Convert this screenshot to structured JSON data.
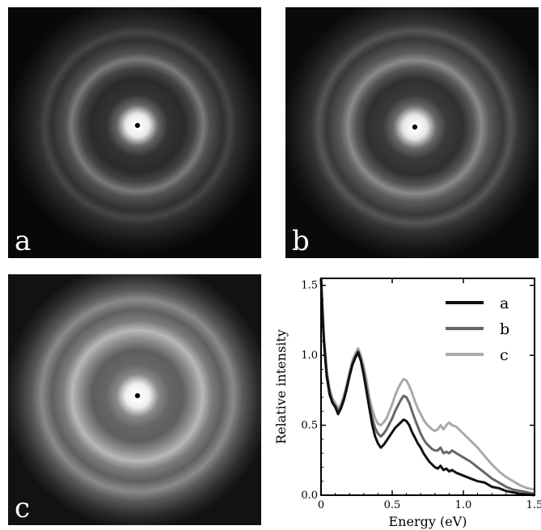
{
  "panels": [
    {
      "id": "a",
      "label": "a"
    },
    {
      "id": "b",
      "label": "b"
    },
    {
      "id": "c",
      "label": "c"
    }
  ],
  "chart_data": {
    "type": "line",
    "title": "",
    "xlabel": "Energy (eV)",
    "ylabel": "Relative intensity",
    "xlim": [
      0,
      1.5
    ],
    "ylim": [
      0,
      1.55
    ],
    "xticks": [
      "0",
      "0.5",
      "1.0",
      "1.5"
    ],
    "yticks": [
      "0.0",
      "0.5",
      "1.0",
      "1.5"
    ],
    "grid": false,
    "legend_position": "top-right",
    "series": [
      {
        "name": "a",
        "color": "#111111",
        "points": [
          [
            0.0,
            1.55
          ],
          [
            0.01,
            1.3
          ],
          [
            0.02,
            1.1
          ],
          [
            0.04,
            0.85
          ],
          [
            0.06,
            0.72
          ],
          [
            0.08,
            0.66
          ],
          [
            0.1,
            0.63
          ],
          [
            0.12,
            0.58
          ],
          [
            0.14,
            0.62
          ],
          [
            0.16,
            0.68
          ],
          [
            0.18,
            0.76
          ],
          [
            0.2,
            0.85
          ],
          [
            0.22,
            0.93
          ],
          [
            0.24,
            0.98
          ],
          [
            0.26,
            1.02
          ],
          [
            0.28,
            0.96
          ],
          [
            0.3,
            0.86
          ],
          [
            0.32,
            0.74
          ],
          [
            0.34,
            0.62
          ],
          [
            0.36,
            0.5
          ],
          [
            0.38,
            0.42
          ],
          [
            0.4,
            0.37
          ],
          [
            0.42,
            0.34
          ],
          [
            0.44,
            0.36
          ],
          [
            0.46,
            0.39
          ],
          [
            0.48,
            0.42
          ],
          [
            0.5,
            0.45
          ],
          [
            0.52,
            0.48
          ],
          [
            0.54,
            0.5
          ],
          [
            0.56,
            0.52
          ],
          [
            0.58,
            0.54
          ],
          [
            0.6,
            0.53
          ],
          [
            0.62,
            0.5
          ],
          [
            0.64,
            0.45
          ],
          [
            0.66,
            0.41
          ],
          [
            0.68,
            0.37
          ],
          [
            0.7,
            0.34
          ],
          [
            0.72,
            0.3
          ],
          [
            0.74,
            0.27
          ],
          [
            0.76,
            0.24
          ],
          [
            0.78,
            0.22
          ],
          [
            0.8,
            0.2
          ],
          [
            0.82,
            0.19
          ],
          [
            0.84,
            0.21
          ],
          [
            0.86,
            0.18
          ],
          [
            0.88,
            0.19
          ],
          [
            0.9,
            0.17
          ],
          [
            0.92,
            0.18
          ],
          [
            0.95,
            0.16
          ],
          [
            1.0,
            0.14
          ],
          [
            1.05,
            0.12
          ],
          [
            1.1,
            0.1
          ],
          [
            1.15,
            0.09
          ],
          [
            1.2,
            0.06
          ],
          [
            1.25,
            0.05
          ],
          [
            1.3,
            0.03
          ],
          [
            1.35,
            0.02
          ],
          [
            1.4,
            0.01
          ],
          [
            1.45,
            0.005
          ],
          [
            1.5,
            0.0
          ]
        ]
      },
      {
        "name": "b",
        "color": "#666666",
        "points": [
          [
            0.0,
            1.55
          ],
          [
            0.01,
            1.32
          ],
          [
            0.02,
            1.12
          ],
          [
            0.04,
            0.87
          ],
          [
            0.06,
            0.74
          ],
          [
            0.08,
            0.67
          ],
          [
            0.1,
            0.64
          ],
          [
            0.12,
            0.6
          ],
          [
            0.14,
            0.63
          ],
          [
            0.16,
            0.69
          ],
          [
            0.18,
            0.77
          ],
          [
            0.2,
            0.86
          ],
          [
            0.22,
            0.94
          ],
          [
            0.24,
            0.99
          ],
          [
            0.26,
            1.03
          ],
          [
            0.28,
            0.97
          ],
          [
            0.3,
            0.88
          ],
          [
            0.32,
            0.77
          ],
          [
            0.34,
            0.65
          ],
          [
            0.36,
            0.55
          ],
          [
            0.38,
            0.48
          ],
          [
            0.4,
            0.44
          ],
          [
            0.42,
            0.42
          ],
          [
            0.44,
            0.44
          ],
          [
            0.46,
            0.47
          ],
          [
            0.48,
            0.51
          ],
          [
            0.5,
            0.55
          ],
          [
            0.52,
            0.6
          ],
          [
            0.54,
            0.64
          ],
          [
            0.56,
            0.68
          ],
          [
            0.58,
            0.71
          ],
          [
            0.6,
            0.7
          ],
          [
            0.62,
            0.66
          ],
          [
            0.64,
            0.6
          ],
          [
            0.66,
            0.54
          ],
          [
            0.68,
            0.49
          ],
          [
            0.7,
            0.44
          ],
          [
            0.72,
            0.4
          ],
          [
            0.74,
            0.37
          ],
          [
            0.76,
            0.35
          ],
          [
            0.78,
            0.33
          ],
          [
            0.8,
            0.32
          ],
          [
            0.82,
            0.32
          ],
          [
            0.84,
            0.34
          ],
          [
            0.86,
            0.3
          ],
          [
            0.88,
            0.31
          ],
          [
            0.9,
            0.3
          ],
          [
            0.92,
            0.32
          ],
          [
            0.95,
            0.3
          ],
          [
            1.0,
            0.27
          ],
          [
            1.05,
            0.24
          ],
          [
            1.1,
            0.2
          ],
          [
            1.15,
            0.16
          ],
          [
            1.2,
            0.12
          ],
          [
            1.25,
            0.09
          ],
          [
            1.3,
            0.06
          ],
          [
            1.35,
            0.04
          ],
          [
            1.4,
            0.03
          ],
          [
            1.45,
            0.02
          ],
          [
            1.5,
            0.01
          ]
        ]
      },
      {
        "name": "c",
        "color": "#aaaaaa",
        "points": [
          [
            0.0,
            1.55
          ],
          [
            0.01,
            1.34
          ],
          [
            0.02,
            1.14
          ],
          [
            0.04,
            0.89
          ],
          [
            0.06,
            0.76
          ],
          [
            0.08,
            0.69
          ],
          [
            0.1,
            0.66
          ],
          [
            0.12,
            0.62
          ],
          [
            0.14,
            0.65
          ],
          [
            0.16,
            0.71
          ],
          [
            0.18,
            0.79
          ],
          [
            0.2,
            0.88
          ],
          [
            0.22,
            0.96
          ],
          [
            0.24,
            1.01
          ],
          [
            0.26,
            1.05
          ],
          [
            0.28,
            1.0
          ],
          [
            0.3,
            0.92
          ],
          [
            0.32,
            0.82
          ],
          [
            0.34,
            0.7
          ],
          [
            0.36,
            0.61
          ],
          [
            0.38,
            0.55
          ],
          [
            0.4,
            0.51
          ],
          [
            0.42,
            0.5
          ],
          [
            0.44,
            0.52
          ],
          [
            0.46,
            0.55
          ],
          [
            0.48,
            0.6
          ],
          [
            0.5,
            0.65
          ],
          [
            0.52,
            0.71
          ],
          [
            0.54,
            0.76
          ],
          [
            0.56,
            0.8
          ],
          [
            0.58,
            0.83
          ],
          [
            0.6,
            0.82
          ],
          [
            0.62,
            0.78
          ],
          [
            0.64,
            0.73
          ],
          [
            0.66,
            0.67
          ],
          [
            0.68,
            0.62
          ],
          [
            0.7,
            0.58
          ],
          [
            0.72,
            0.54
          ],
          [
            0.74,
            0.51
          ],
          [
            0.76,
            0.49
          ],
          [
            0.78,
            0.47
          ],
          [
            0.8,
            0.46
          ],
          [
            0.82,
            0.47
          ],
          [
            0.84,
            0.5
          ],
          [
            0.86,
            0.47
          ],
          [
            0.88,
            0.5
          ],
          [
            0.9,
            0.52
          ],
          [
            0.92,
            0.5
          ],
          [
            0.95,
            0.49
          ],
          [
            1.0,
            0.44
          ],
          [
            1.05,
            0.39
          ],
          [
            1.1,
            0.34
          ],
          [
            1.15,
            0.28
          ],
          [
            1.2,
            0.22
          ],
          [
            1.25,
            0.17
          ],
          [
            1.3,
            0.13
          ],
          [
            1.35,
            0.1
          ],
          [
            1.4,
            0.07
          ],
          [
            1.45,
            0.05
          ],
          [
            1.5,
            0.04
          ]
        ]
      }
    ]
  }
}
